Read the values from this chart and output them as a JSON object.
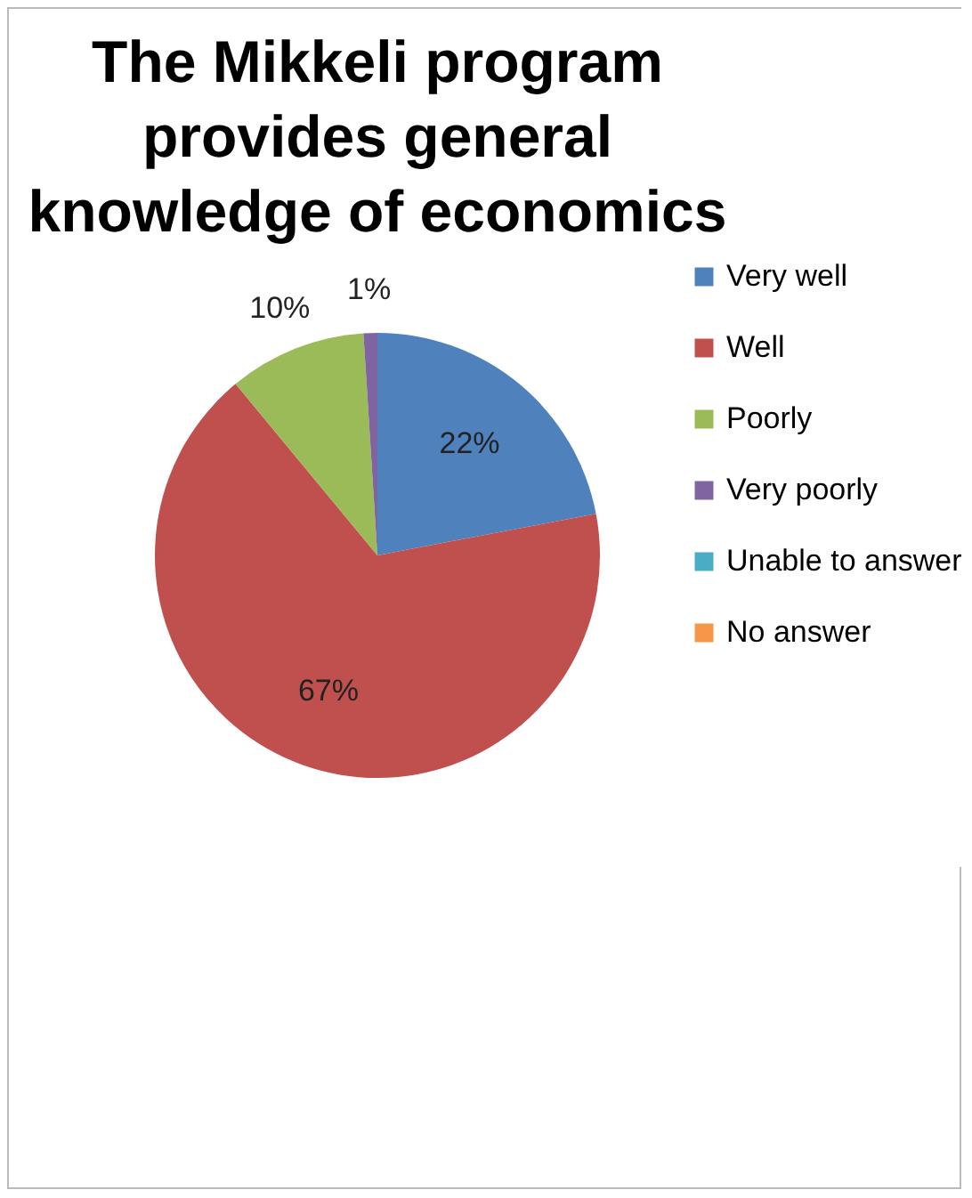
{
  "chart_data": {
    "type": "pie",
    "title": "The Mikkeli program provides general knowledge of economics",
    "categories": [
      "Very well",
      "Well",
      "Poorly",
      "Very poorly",
      "Unable to answer",
      "No answer"
    ],
    "values": [
      22,
      67,
      10,
      1,
      0,
      0
    ],
    "colors": [
      "#4f81bd",
      "#c0504d",
      "#9bbb59",
      "#8064a2",
      "#4bacc6",
      "#f79646"
    ],
    "value_labels": [
      "22%",
      "67%",
      "10%",
      "1%",
      null,
      null
    ],
    "legend": "right"
  }
}
